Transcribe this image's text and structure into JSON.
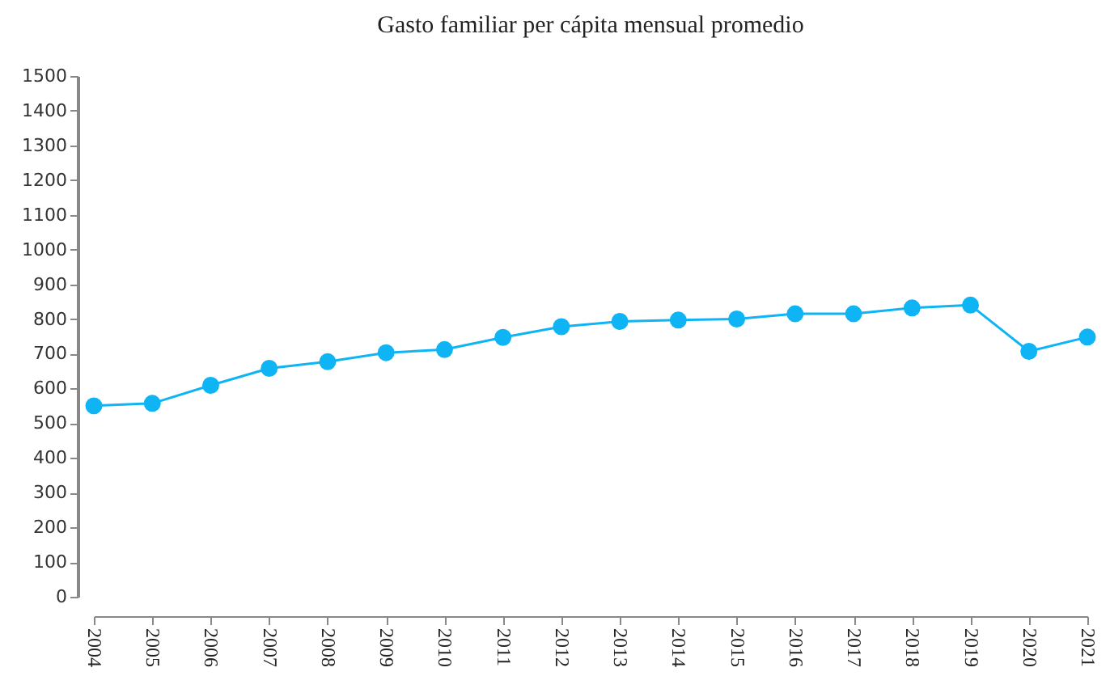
{
  "chart_data": {
    "type": "line",
    "title": "Gasto familiar per cápita mensual promedio",
    "categories": [
      "2004",
      "2005",
      "2006",
      "2007",
      "2008",
      "2009",
      "2010",
      "2011",
      "2012",
      "2013",
      "2014",
      "2015",
      "2016",
      "2017",
      "2018",
      "2019",
      "2020",
      "2021"
    ],
    "series": [
      {
        "color": "#0fb4f5",
        "values": [
          550,
          557,
          609,
          658,
          677,
          703,
          712,
          747,
          778,
          793,
          797,
          800,
          815,
          815,
          832,
          840,
          707,
          748
        ]
      }
    ],
    "ylim": [
      0,
      1500
    ],
    "yticks": [
      0,
      100,
      200,
      300,
      400,
      500,
      600,
      700,
      800,
      900,
      1000,
      1100,
      1200,
      1300,
      1400,
      1500
    ],
    "grid": false,
    "marker": "circle",
    "line_style": "solid"
  }
}
